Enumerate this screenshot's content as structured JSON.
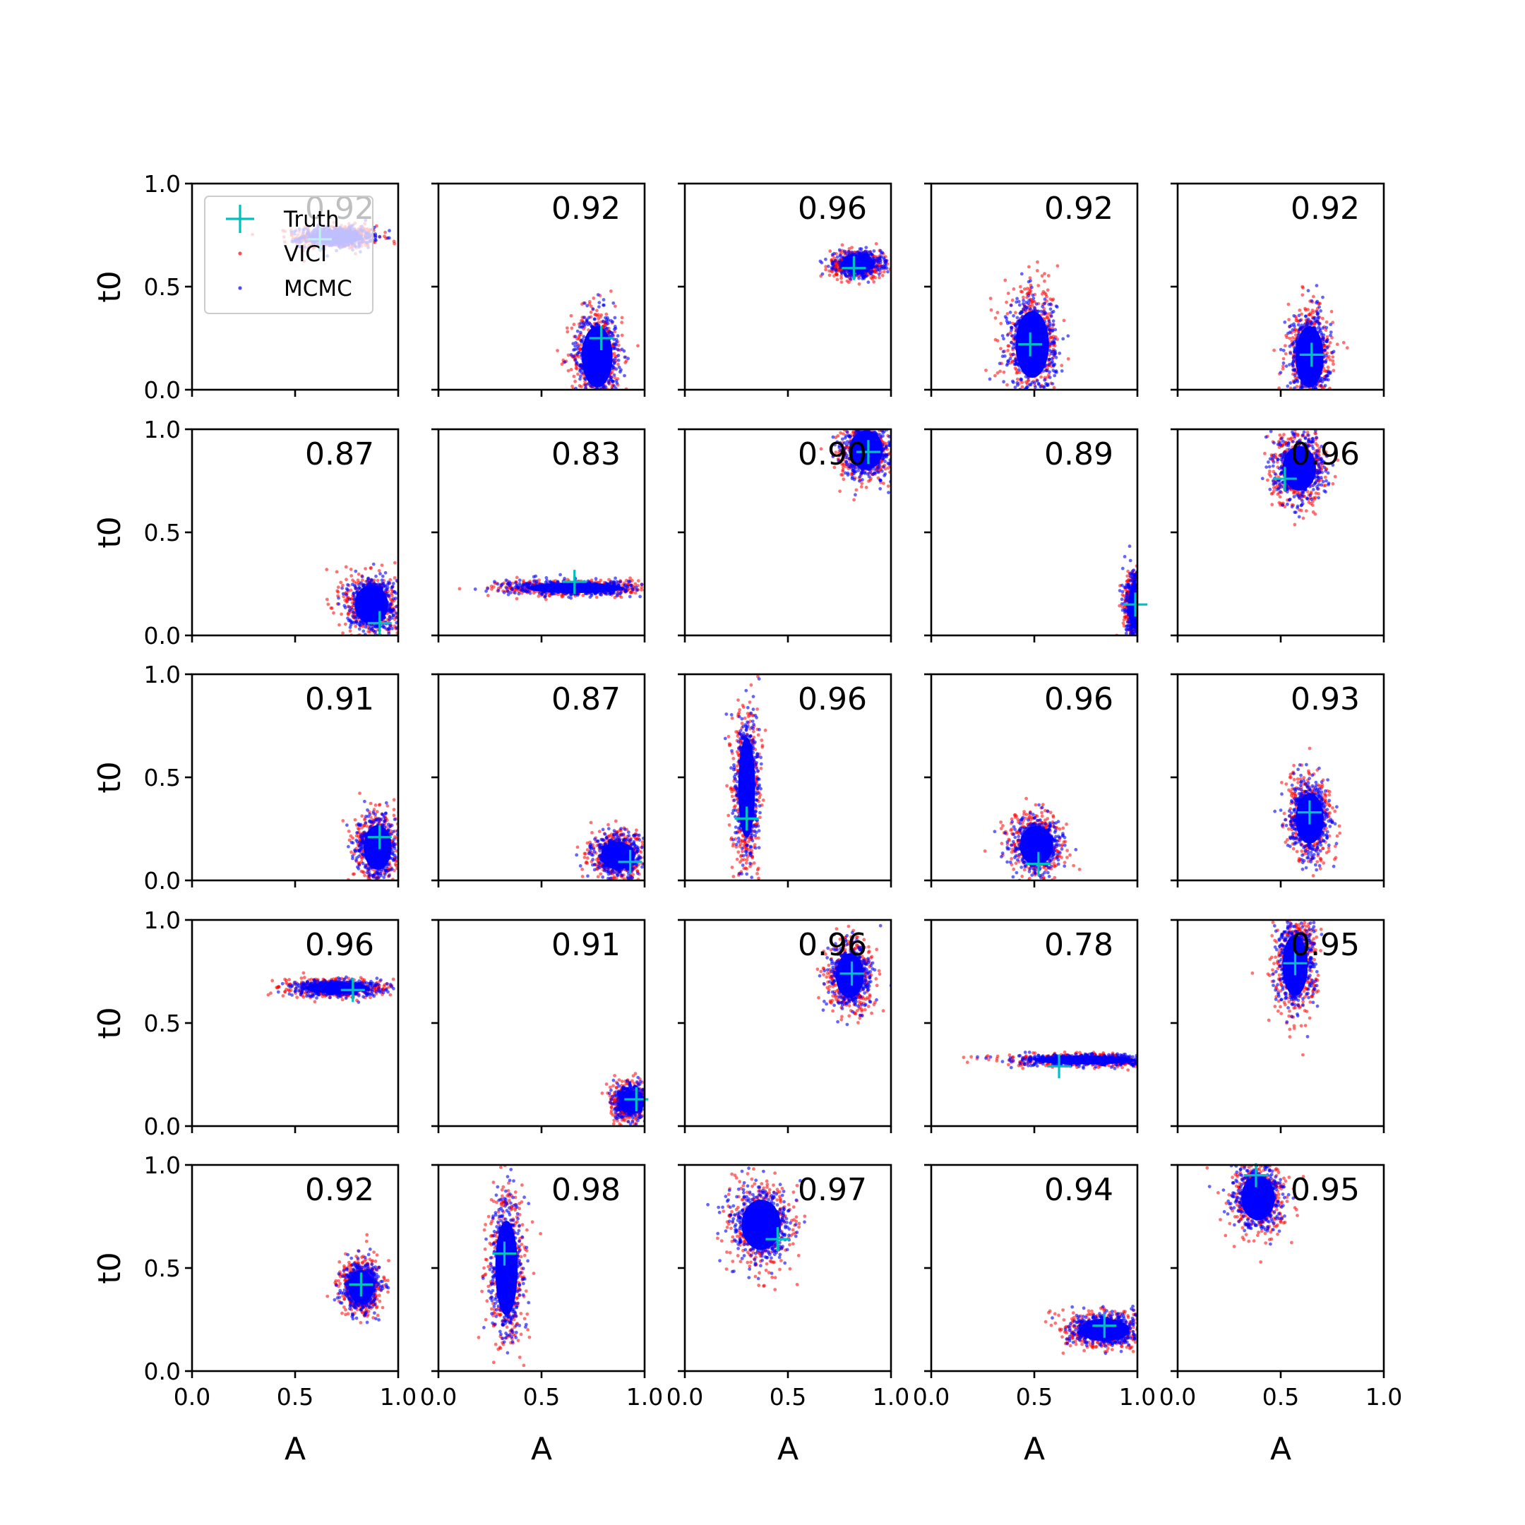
{
  "chart_data": {
    "type": "scatter",
    "layout": "5x5 grid of scatter panels",
    "xlabel": "A",
    "ylabel": "t0",
    "xlim": [
      0,
      1
    ],
    "ylim": [
      0,
      1
    ],
    "xticks": [
      "0.0",
      "0.5",
      "1.0"
    ],
    "yticks": [
      "0.0",
      "0.5",
      "1.0"
    ],
    "legend": {
      "placement": "upper-left of first panel",
      "entries": [
        {
          "label": "Truth",
          "marker": "plus",
          "color": "#00bfbf"
        },
        {
          "label": "VICI",
          "marker": "dot",
          "color": "#ff0000"
        },
        {
          "label": "MCMC",
          "marker": "dot",
          "color": "#0000ff"
        }
      ]
    },
    "colors": {
      "truth": "#00bfbf",
      "vici": "#ff0000",
      "mcmc": "#0000ff"
    },
    "panels": [
      {
        "overlap": "0.92",
        "truth": [
          0.62,
          0.73
        ],
        "cloud": {
          "cx": 0.7,
          "cy": 0.74,
          "sx": 0.09,
          "sy": 0.025
        },
        "faded": true
      },
      {
        "overlap": "0.92",
        "truth": [
          0.79,
          0.25
        ],
        "cloud": {
          "cx": 0.77,
          "cy": 0.16,
          "sx": 0.055,
          "sy": 0.11
        }
      },
      {
        "overlap": "0.96",
        "truth": [
          0.82,
          0.59
        ],
        "cloud": {
          "cx": 0.84,
          "cy": 0.61,
          "sx": 0.06,
          "sy": 0.03
        }
      },
      {
        "overlap": "0.92",
        "truth": [
          0.48,
          0.22
        ],
        "cloud": {
          "cx": 0.49,
          "cy": 0.22,
          "sx": 0.06,
          "sy": 0.12
        }
      },
      {
        "overlap": "0.92",
        "truth": [
          0.65,
          0.17
        ],
        "cloud": {
          "cx": 0.64,
          "cy": 0.16,
          "sx": 0.05,
          "sy": 0.11
        }
      },
      {
        "overlap": "0.87",
        "truth": [
          0.91,
          0.06
        ],
        "cloud": {
          "cx": 0.87,
          "cy": 0.15,
          "sx": 0.06,
          "sy": 0.07
        }
      },
      {
        "overlap": "0.83",
        "truth": [
          0.66,
          0.26
        ],
        "cloud": {
          "cx": 0.66,
          "cy": 0.23,
          "sx": 0.17,
          "sy": 0.018
        }
      },
      {
        "overlap": "0.90",
        "truth": [
          0.89,
          0.89
        ],
        "cloud": {
          "cx": 0.88,
          "cy": 0.9,
          "sx": 0.06,
          "sy": 0.07
        }
      },
      {
        "overlap": "0.89",
        "truth": [
          0.99,
          0.15
        ],
        "cloud": {
          "cx": 0.99,
          "cy": 0.14,
          "sx": 0.025,
          "sy": 0.08
        }
      },
      {
        "overlap": "0.96",
        "truth": [
          0.52,
          0.76
        ],
        "cloud": {
          "cx": 0.59,
          "cy": 0.81,
          "sx": 0.06,
          "sy": 0.08
        }
      },
      {
        "overlap": "0.91",
        "truth": [
          0.91,
          0.21
        ],
        "cloud": {
          "cx": 0.9,
          "cy": 0.16,
          "sx": 0.05,
          "sy": 0.08
        }
      },
      {
        "overlap": "0.87",
        "truth": [
          0.93,
          0.09
        ],
        "cloud": {
          "cx": 0.87,
          "cy": 0.12,
          "sx": 0.06,
          "sy": 0.05
        }
      },
      {
        "overlap": "0.96",
        "truth": [
          0.3,
          0.3
        ],
        "cloud": {
          "cx": 0.3,
          "cy": 0.45,
          "sx": 0.03,
          "sy": 0.18
        }
      },
      {
        "overlap": "0.96",
        "truth": [
          0.52,
          0.08
        ],
        "cloud": {
          "cx": 0.51,
          "cy": 0.17,
          "sx": 0.06,
          "sy": 0.07
        }
      },
      {
        "overlap": "0.93",
        "truth": [
          0.64,
          0.33
        ],
        "cloud": {
          "cx": 0.64,
          "cy": 0.3,
          "sx": 0.05,
          "sy": 0.09
        }
      },
      {
        "overlap": "0.96",
        "truth": [
          0.78,
          0.66
        ],
        "cloud": {
          "cx": 0.7,
          "cy": 0.67,
          "sx": 0.11,
          "sy": 0.02
        }
      },
      {
        "overlap": "0.91",
        "truth": [
          0.96,
          0.13
        ],
        "cloud": {
          "cx": 0.93,
          "cy": 0.12,
          "sx": 0.04,
          "sy": 0.04
        }
      },
      {
        "overlap": "0.96",
        "truth": [
          0.81,
          0.74
        ],
        "cloud": {
          "cx": 0.8,
          "cy": 0.73,
          "sx": 0.05,
          "sy": 0.08
        }
      },
      {
        "overlap": "0.78",
        "truth": [
          0.62,
          0.29
        ],
        "cloud": {
          "cx": 0.75,
          "cy": 0.32,
          "sx": 0.18,
          "sy": 0.015
        }
      },
      {
        "overlap": "0.95",
        "truth": [
          0.57,
          0.79
        ],
        "cloud": {
          "cx": 0.57,
          "cy": 0.78,
          "sx": 0.045,
          "sy": 0.11
        }
      },
      {
        "overlap": "0.92",
        "truth": [
          0.82,
          0.42
        ],
        "cloud": {
          "cx": 0.82,
          "cy": 0.41,
          "sx": 0.045,
          "sy": 0.06
        }
      },
      {
        "overlap": "0.98",
        "truth": [
          0.32,
          0.57
        ],
        "cloud": {
          "cx": 0.33,
          "cy": 0.5,
          "sx": 0.04,
          "sy": 0.17
        }
      },
      {
        "overlap": "0.97",
        "truth": [
          0.45,
          0.64
        ],
        "cloud": {
          "cx": 0.37,
          "cy": 0.71,
          "sx": 0.07,
          "sy": 0.09
        }
      },
      {
        "overlap": "0.94",
        "truth": [
          0.84,
          0.22
        ],
        "cloud": {
          "cx": 0.84,
          "cy": 0.2,
          "sx": 0.09,
          "sy": 0.04
        }
      },
      {
        "overlap": "0.95",
        "truth": [
          0.38,
          0.95
        ],
        "cloud": {
          "cx": 0.39,
          "cy": 0.84,
          "sx": 0.06,
          "sy": 0.08
        }
      }
    ]
  }
}
